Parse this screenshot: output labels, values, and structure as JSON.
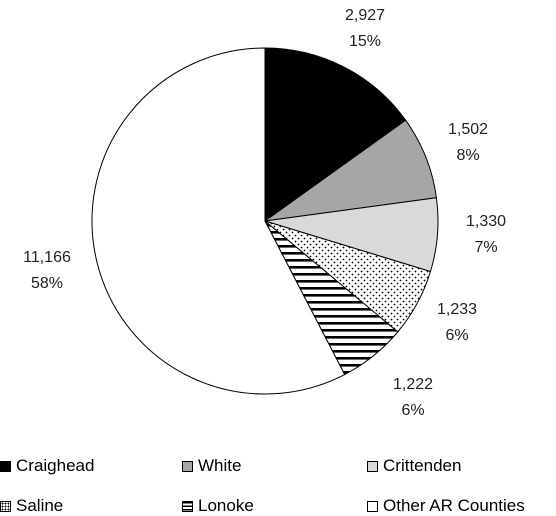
{
  "chart_data": {
    "type": "pie",
    "title": "",
    "slices": [
      {
        "name": "Craighead",
        "value": 2927,
        "value_label": "2,927",
        "percent_label": "15%",
        "fill": "solid-black"
      },
      {
        "name": "White",
        "value": 1502,
        "value_label": "1,502",
        "percent_label": "8%",
        "fill": "solid-gray"
      },
      {
        "name": "Crittenden",
        "value": 1330,
        "value_label": "1,330",
        "percent_label": "7%",
        "fill": "solid-lightgray"
      },
      {
        "name": "Saline",
        "value": 1233,
        "value_label": "1,233",
        "percent_label": "6%",
        "fill": "dots"
      },
      {
        "name": "Lonoke",
        "value": 1222,
        "value_label": "1,222",
        "percent_label": "6%",
        "fill": "horizontal-stripes"
      },
      {
        "name": "Other AR Counties",
        "value": 11166,
        "value_label": "11,166",
        "percent_label": "58%",
        "fill": "solid-white"
      }
    ],
    "legend_position": "bottom",
    "colors": {
      "black": "#000000",
      "gray": "#a6a6a6",
      "lightgray": "#d9d9d9",
      "white": "#ffffff"
    }
  }
}
